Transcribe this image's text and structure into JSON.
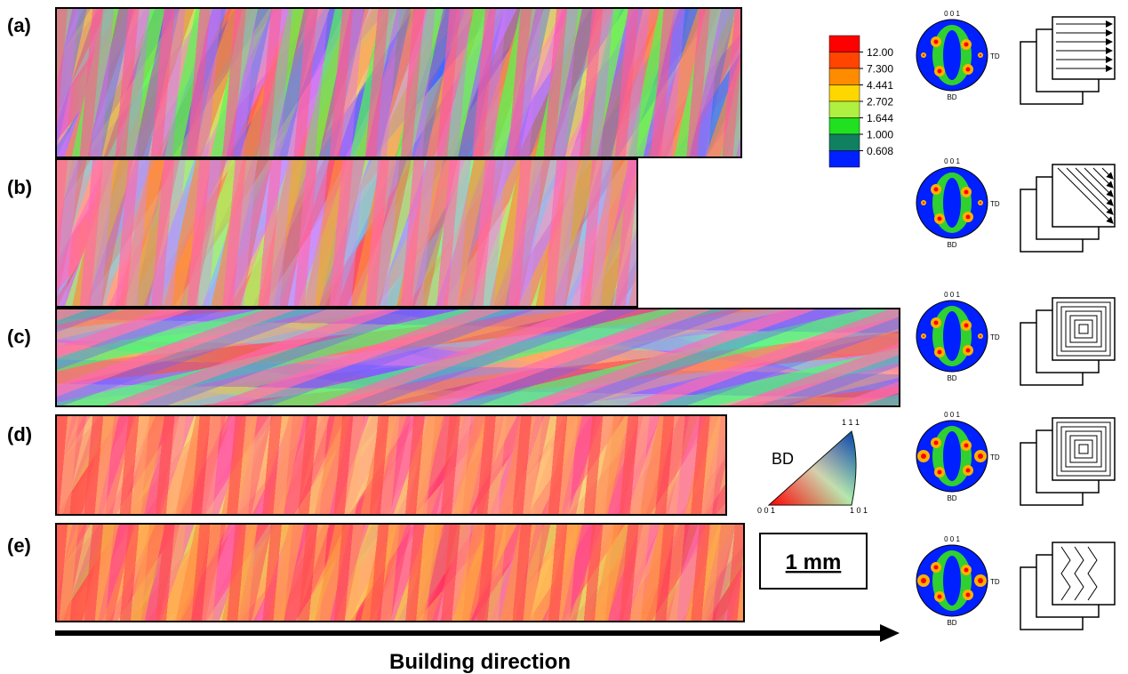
{
  "panels": [
    {
      "label": "(a)",
      "pole_figure": {
        "top": "0 0 1",
        "right": "TD",
        "bottom": "BD"
      }
    },
    {
      "label": "(b)",
      "pole_figure": {
        "top": "0 0 1",
        "right": "TD",
        "bottom": "BD"
      }
    },
    {
      "label": "(c)",
      "pole_figure": {
        "top": "0 0 1",
        "right": "TD",
        "bottom": "BD"
      }
    },
    {
      "label": "(d)",
      "pole_figure": {
        "top": "0 0 1",
        "right": "TD",
        "bottom": "BD"
      }
    },
    {
      "label": "(e)",
      "pole_figure": {
        "top": "0 0 1",
        "right": "TD",
        "bottom": "BD"
      }
    }
  ],
  "colorbar": {
    "labels": [
      "12.00",
      "7.300",
      "4.441",
      "2.702",
      "1.644",
      "1.000",
      "0.608"
    ]
  },
  "ipf": {
    "axis": "BD",
    "corners": [
      "1 1 1",
      "0 0 1",
      "1 0 1"
    ]
  },
  "scale_bar": "1 mm",
  "arrow_label": "Building direction"
}
